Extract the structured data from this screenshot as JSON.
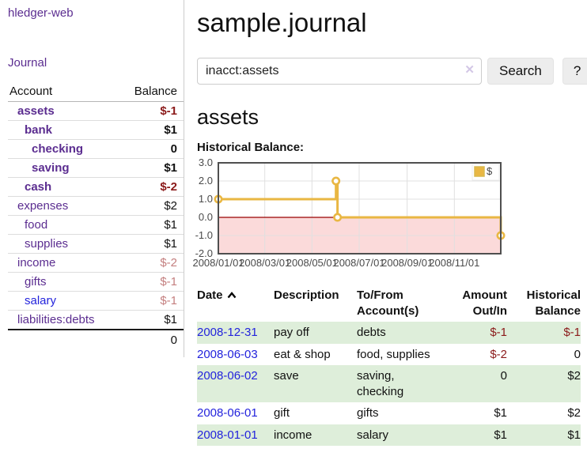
{
  "sidebar": {
    "app_title": "hledger-web",
    "nav": {
      "journal_label": "Journal"
    },
    "table": {
      "account_header": "Account",
      "balance_header": "Balance"
    },
    "accounts": [
      {
        "name": "assets",
        "indent": 1,
        "bold": true,
        "link": "purple",
        "balance": "$-1",
        "balance_style": "neg"
      },
      {
        "name": "bank",
        "indent": 2,
        "bold": true,
        "link": "purple",
        "balance": "$1",
        "balance_style": "plain"
      },
      {
        "name": "checking",
        "indent": 3,
        "bold": true,
        "link": "purple",
        "balance": "0",
        "balance_style": "plain"
      },
      {
        "name": "saving",
        "indent": 3,
        "bold": true,
        "link": "purple",
        "balance": "$1",
        "balance_style": "plain"
      },
      {
        "name": "cash",
        "indent": 2,
        "bold": true,
        "link": "purple",
        "balance": "$-2",
        "balance_style": "neg"
      },
      {
        "name": "expenses",
        "indent": 1,
        "bold": false,
        "link": "purple",
        "balance": "$2",
        "balance_style": "plain"
      },
      {
        "name": "food",
        "indent": 2,
        "bold": false,
        "link": "purple",
        "balance": "$1",
        "balance_style": "plain"
      },
      {
        "name": "supplies",
        "indent": 2,
        "bold": false,
        "link": "purple",
        "balance": "$1",
        "balance_style": "plain"
      },
      {
        "name": "income",
        "indent": 1,
        "bold": false,
        "link": "purple",
        "balance": "$-2",
        "balance_style": "fneg"
      },
      {
        "name": "gifts",
        "indent": 2,
        "bold": false,
        "link": "purple",
        "balance": "$-1",
        "balance_style": "fneg"
      },
      {
        "name": "salary",
        "indent": 2,
        "bold": false,
        "link": "blue",
        "balance": "$-1",
        "balance_style": "fneg"
      },
      {
        "name": "liabilities:debts",
        "indent": 1,
        "bold": false,
        "link": "purple",
        "balance": "$1",
        "balance_style": "plain"
      }
    ],
    "total": "0"
  },
  "main": {
    "title": "sample.journal",
    "search": {
      "value": "inacct:assets",
      "clear_icon": "✕",
      "button_label": "Search",
      "help_label": "?"
    },
    "account_heading": "assets",
    "chart_label": "Historical Balance:"
  },
  "chart_data": {
    "type": "line",
    "subtype": "step-after",
    "title": "Historical Balance",
    "series": [
      {
        "name": "$",
        "color": "#E9B743",
        "points": [
          [
            "2008-01-01",
            1.0
          ],
          [
            "2008-06-01",
            2.0
          ],
          [
            "2008-06-02",
            2.0
          ],
          [
            "2008-06-03",
            0.0
          ],
          [
            "2008-12-31",
            -1.0
          ]
        ]
      }
    ],
    "x_range": [
      "2008-01-01",
      "2008-12-31"
    ],
    "x_ticks": [
      "2008/01/01",
      "2008/03/01",
      "2008/05/01",
      "2008/07/01",
      "2008/09/01",
      "2008/11/01"
    ],
    "ylim": [
      -2.0,
      3.0
    ],
    "y_ticks": [
      3.0,
      2.0,
      1.0,
      0.0,
      -1.0,
      -2.0
    ],
    "legend": {
      "label": "$",
      "position": "top-right"
    },
    "grid": true,
    "negative_region_shaded": true
  },
  "register": {
    "columns": {
      "date": "Date",
      "description": "Description",
      "accounts": "To/From Account(s)",
      "amount": "Amount Out/In",
      "balance": "Historical Balance"
    },
    "rows": [
      {
        "date": "2008-12-31",
        "description": "pay off",
        "accounts": "debts",
        "amount": "$-1",
        "amount_negative": true,
        "balance": "$-1",
        "balance_negative": true,
        "shaded": true
      },
      {
        "date": "2008-06-03",
        "description": "eat & shop",
        "accounts": "food, supplies",
        "amount": "$-2",
        "amount_negative": true,
        "balance": "0",
        "balance_negative": false,
        "shaded": false
      },
      {
        "date": "2008-06-02",
        "description": "save",
        "accounts": "saving, checking",
        "amount": "0",
        "amount_negative": false,
        "balance": "$2",
        "balance_negative": false,
        "shaded": true
      },
      {
        "date": "2008-06-01",
        "description": "gift",
        "accounts": "gifts",
        "amount": "$1",
        "amount_negative": false,
        "balance": "$2",
        "balance_negative": false,
        "shaded": false
      },
      {
        "date": "2008-01-01",
        "description": "income",
        "accounts": "salary",
        "amount": "$1",
        "amount_negative": false,
        "balance": "$1",
        "balance_negative": false,
        "shaded": true
      }
    ]
  },
  "colors": {
    "purple_link": "#5b2d90",
    "blue_link": "#2323dc",
    "negative": "#8b1a1a",
    "faded_negative": "#c47f7f",
    "row_green": "#deeeda",
    "chart_gold": "#E9B743",
    "chart_negative_fill": "#fbdada",
    "chart_zero_line": "#990000",
    "chart_border": "#4f4f4f",
    "chart_grid": "#e0e0e0"
  }
}
